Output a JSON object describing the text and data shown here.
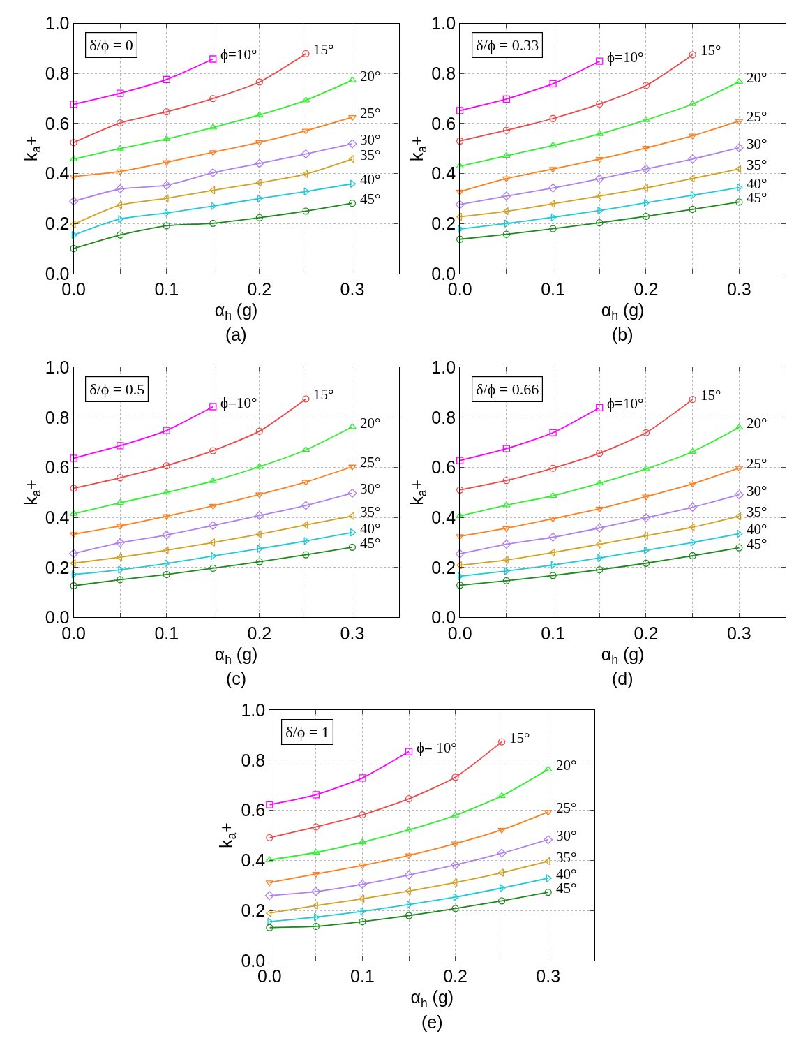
{
  "chart_data": [
    {
      "type": "line",
      "xlabel": "α$_{h}$ (g)",
      "ylabel": "k$_{a}$+",
      "annotations": [
        "δ/ϕ = 0",
        "(a)"
      ],
      "x": [
        0,
        0.05,
        0.1,
        0.15,
        0.2,
        0.25,
        0.3
      ],
      "xlim": [
        0,
        0.35
      ],
      "ylim": [
        0,
        1
      ],
      "xticks": [
        {
          "value": 0,
          "label": "0.0"
        },
        {
          "value": 0.05,
          "label": null
        },
        {
          "value": 0.1,
          "label": "0.1"
        },
        {
          "value": 0.15,
          "label": null
        },
        {
          "value": 0.2,
          "label": "0.2"
        },
        {
          "value": 0.25,
          "label": null
        },
        {
          "value": 0.3,
          "label": "0.3"
        }
      ],
      "yticks": [
        {
          "value": 0,
          "label": "0.0"
        },
        {
          "value": 0.2,
          "label": "0.2"
        },
        {
          "value": 0.4,
          "label": "0.4"
        },
        {
          "value": 0.6,
          "label": "0.6"
        },
        {
          "value": 0.8,
          "label": "0.8"
        },
        {
          "value": 1,
          "label": "1.0"
        }
      ],
      "grid": true,
      "legend": false,
      "line_style": "solid",
      "series": [
        {
          "name": "ϕ=10°",
          "color": "#ff00ff",
          "marker": "square",
          "values": [
            0.677,
            0.721,
            0.776,
            0.858,
            null,
            null,
            null
          ]
        },
        {
          "name": "15°",
          "color": "#f04848",
          "marker": "circle",
          "values": [
            0.524,
            0.602,
            0.647,
            0.7,
            0.766,
            0.879,
            null
          ]
        },
        {
          "name": "20°",
          "color": "#33ee33",
          "marker": "triangle-up",
          "values": [
            0.458,
            0.5,
            0.538,
            0.584,
            0.634,
            0.693,
            0.773
          ]
        },
        {
          "name": "25°",
          "color": "#ff7f1e",
          "marker": "triangle-down",
          "values": [
            0.388,
            0.408,
            0.445,
            0.485,
            0.525,
            0.571,
            0.625
          ]
        },
        {
          "name": "30°",
          "color": "#b07ff0",
          "marker": "diamond",
          "values": [
            0.289,
            0.338,
            0.353,
            0.403,
            0.44,
            0.478,
            0.519
          ]
        },
        {
          "name": "35°",
          "color": "#d4a020",
          "marker": "triangle-left",
          "values": [
            0.197,
            0.274,
            0.301,
            0.333,
            0.363,
            0.398,
            0.458
          ]
        },
        {
          "name": "40°",
          "color": "#20c8d8",
          "marker": "triangle-right",
          "values": [
            0.154,
            0.218,
            0.242,
            0.27,
            0.3,
            0.328,
            0.359
          ]
        },
        {
          "name": "45°",
          "color": "#1e8a1e",
          "marker": "circle",
          "values": [
            0.1,
            0.154,
            0.191,
            0.201,
            0.223,
            0.25,
            0.281
          ]
        }
      ]
    },
    {
      "type": "line",
      "xlabel": "α$_{h}$ (g)",
      "ylabel": "k$_{a}$+",
      "annotations": [
        "δ/ϕ = 0.33",
        "(b)"
      ],
      "x": [
        0,
        0.05,
        0.1,
        0.15,
        0.2,
        0.25,
        0.3
      ],
      "xlim": [
        0,
        0.35
      ],
      "ylim": [
        0,
        1
      ],
      "xticks": [
        {
          "value": 0,
          "label": "0.0"
        },
        {
          "value": 0.05,
          "label": null
        },
        {
          "value": 0.1,
          "label": "0.1"
        },
        {
          "value": 0.15,
          "label": null
        },
        {
          "value": 0.2,
          "label": "0.2"
        },
        {
          "value": 0.25,
          "label": null
        },
        {
          "value": 0.3,
          "label": "0.3"
        }
      ],
      "yticks": [
        {
          "value": 0,
          "label": "0.0"
        },
        {
          "value": 0.2,
          "label": "0.2"
        },
        {
          "value": 0.4,
          "label": "0.4"
        },
        {
          "value": 0.6,
          "label": "0.6"
        },
        {
          "value": 0.8,
          "label": "0.8"
        },
        {
          "value": 1,
          "label": "1.0"
        }
      ],
      "grid": true,
      "legend": false,
      "line_style": "solid",
      "series": [
        {
          "name": "ϕ=10°",
          "color": "#ff00ff",
          "marker": "square",
          "values": [
            0.652,
            0.698,
            0.759,
            0.849,
            null,
            null,
            null
          ]
        },
        {
          "name": "15°",
          "color": "#f04848",
          "marker": "circle",
          "values": [
            0.53,
            0.573,
            0.62,
            0.678,
            0.752,
            0.875,
            null
          ]
        },
        {
          "name": "20°",
          "color": "#33ee33",
          "marker": "triangle-up",
          "values": [
            0.429,
            0.471,
            0.512,
            0.558,
            0.614,
            0.678,
            0.767
          ]
        },
        {
          "name": "25°",
          "color": "#ff7f1e",
          "marker": "triangle-down",
          "values": [
            0.327,
            0.38,
            0.418,
            0.458,
            0.502,
            0.551,
            0.61
          ]
        },
        {
          "name": "30°",
          "color": "#b07ff0",
          "marker": "diamond",
          "values": [
            0.276,
            0.31,
            0.342,
            0.379,
            0.418,
            0.458,
            0.503
          ]
        },
        {
          "name": "35°",
          "color": "#d4a020",
          "marker": "triangle-left",
          "values": [
            0.227,
            0.249,
            0.279,
            0.31,
            0.342,
            0.38,
            0.418
          ]
        },
        {
          "name": "40°",
          "color": "#20c8d8",
          "marker": "triangle-right",
          "values": [
            0.178,
            0.2,
            0.225,
            0.252,
            0.283,
            0.313,
            0.344
          ]
        },
        {
          "name": "45°",
          "color": "#1e8a1e",
          "marker": "circle",
          "values": [
            0.137,
            0.157,
            0.179,
            0.203,
            0.229,
            0.257,
            0.286
          ]
        }
      ]
    },
    {
      "type": "line",
      "xlabel": "α$_{h}$ (g)",
      "ylabel": "k$_{a}$+",
      "annotations": [
        "δ/ϕ = 0.5",
        "(c)"
      ],
      "x": [
        0,
        0.05,
        0.1,
        0.15,
        0.2,
        0.25,
        0.3
      ],
      "xlim": [
        0,
        0.35
      ],
      "ylim": [
        0,
        1
      ],
      "xticks": [
        {
          "value": 0,
          "label": "0.0"
        },
        {
          "value": 0.05,
          "label": null
        },
        {
          "value": 0.1,
          "label": "0.1"
        },
        {
          "value": 0.15,
          "label": null
        },
        {
          "value": 0.2,
          "label": "0.2"
        },
        {
          "value": 0.25,
          "label": null
        },
        {
          "value": 0.3,
          "label": "0.3"
        }
      ],
      "yticks": [
        {
          "value": 0,
          "label": "0.0"
        },
        {
          "value": 0.2,
          "label": "0.2"
        },
        {
          "value": 0.4,
          "label": "0.4"
        },
        {
          "value": 0.6,
          "label": "0.6"
        },
        {
          "value": 0.8,
          "label": "0.8"
        },
        {
          "value": 1,
          "label": "1.0"
        }
      ],
      "grid": true,
      "legend": false,
      "line_style": "solid",
      "series": [
        {
          "name": "ϕ=10°",
          "color": "#ff00ff",
          "marker": "square",
          "values": [
            0.637,
            0.687,
            0.748,
            0.843,
            null,
            null,
            null
          ]
        },
        {
          "name": "15°",
          "color": "#f04848",
          "marker": "circle",
          "values": [
            0.517,
            0.559,
            0.607,
            0.667,
            0.745,
            0.874,
            null
          ]
        },
        {
          "name": "20°",
          "color": "#33ee33",
          "marker": "triangle-up",
          "values": [
            0.415,
            0.459,
            0.5,
            0.546,
            0.603,
            0.67,
            0.762
          ]
        },
        {
          "name": "25°",
          "color": "#ff7f1e",
          "marker": "triangle-down",
          "values": [
            0.333,
            0.366,
            0.405,
            0.446,
            0.492,
            0.542,
            0.603
          ]
        },
        {
          "name": "30°",
          "color": "#b07ff0",
          "marker": "diamond",
          "values": [
            0.256,
            0.299,
            0.33,
            0.368,
            0.408,
            0.448,
            0.497
          ]
        },
        {
          "name": "35°",
          "color": "#d4a020",
          "marker": "triangle-left",
          "values": [
            0.217,
            0.241,
            0.269,
            0.3,
            0.333,
            0.37,
            0.406
          ]
        },
        {
          "name": "40°",
          "color": "#20c8d8",
          "marker": "triangle-right",
          "values": [
            0.172,
            0.191,
            0.216,
            0.246,
            0.275,
            0.306,
            0.34
          ]
        },
        {
          "name": "45°",
          "color": "#1e8a1e",
          "marker": "circle",
          "values": [
            0.127,
            0.151,
            0.172,
            0.197,
            0.223,
            0.251,
            0.281
          ]
        }
      ]
    },
    {
      "type": "line",
      "xlabel": "α$_{h}$ (g)",
      "ylabel": "k$_{a}$+",
      "annotations": [
        "δ/ϕ = 0.66",
        "(d)"
      ],
      "x": [
        0,
        0.05,
        0.1,
        0.15,
        0.2,
        0.25,
        0.3
      ],
      "xlim": [
        0,
        0.35
      ],
      "ylim": [
        0,
        1
      ],
      "xticks": [
        {
          "value": 0,
          "label": "0.0"
        },
        {
          "value": 0.05,
          "label": null
        },
        {
          "value": 0.1,
          "label": "0.1"
        },
        {
          "value": 0.15,
          "label": null
        },
        {
          "value": 0.2,
          "label": "0.2"
        },
        {
          "value": 0.25,
          "label": null
        },
        {
          "value": 0.3,
          "label": "0.3"
        }
      ],
      "yticks": [
        {
          "value": 0,
          "label": "0.0"
        },
        {
          "value": 0.2,
          "label": "0.2"
        },
        {
          "value": 0.4,
          "label": "0.4"
        },
        {
          "value": 0.6,
          "label": "0.6"
        },
        {
          "value": 0.8,
          "label": "0.8"
        },
        {
          "value": 1,
          "label": "1.0"
        }
      ],
      "grid": true,
      "legend": false,
      "line_style": "solid",
      "series": [
        {
          "name": "ϕ=10°",
          "color": "#ff00ff",
          "marker": "square",
          "values": [
            0.628,
            0.675,
            0.739,
            0.839,
            null,
            null,
            null
          ]
        },
        {
          "name": "15°",
          "color": "#f04848",
          "marker": "circle",
          "values": [
            0.51,
            0.548,
            0.597,
            0.657,
            0.739,
            0.872,
            null
          ]
        },
        {
          "name": "20°",
          "color": "#33ee33",
          "marker": "triangle-up",
          "values": [
            0.406,
            0.449,
            0.487,
            0.537,
            0.594,
            0.663,
            0.76
          ]
        },
        {
          "name": "25°",
          "color": "#ff7f1e",
          "marker": "triangle-down",
          "values": [
            0.325,
            0.357,
            0.395,
            0.435,
            0.483,
            0.535,
            0.598
          ]
        },
        {
          "name": "30°",
          "color": "#b07ff0",
          "marker": "diamond",
          "values": [
            0.255,
            0.293,
            0.321,
            0.358,
            0.399,
            0.441,
            0.491
          ]
        },
        {
          "name": "35°",
          "color": "#d4a020",
          "marker": "triangle-left",
          "values": [
            0.209,
            0.23,
            0.26,
            0.293,
            0.327,
            0.361,
            0.405
          ]
        },
        {
          "name": "40°",
          "color": "#20c8d8",
          "marker": "triangle-right",
          "values": [
            0.165,
            0.186,
            0.21,
            0.238,
            0.269,
            0.3,
            0.335
          ]
        },
        {
          "name": "45°",
          "color": "#1e8a1e",
          "marker": "circle",
          "values": [
            0.129,
            0.147,
            0.168,
            0.191,
            0.217,
            0.247,
            0.279
          ]
        }
      ]
    },
    {
      "type": "line",
      "xlabel": "α$_{h}$ (g)",
      "ylabel": "k$_{a}$+",
      "annotations": [
        "δ/ϕ = 1",
        "(e)"
      ],
      "x": [
        0,
        0.05,
        0.1,
        0.15,
        0.2,
        0.25,
        0.3
      ],
      "xlim": [
        0,
        0.35
      ],
      "ylim": [
        0,
        1
      ],
      "xticks": [
        {
          "value": 0,
          "label": "0.0"
        },
        {
          "value": 0.05,
          "label": null
        },
        {
          "value": 0.1,
          "label": "0.1"
        },
        {
          "value": 0.15,
          "label": null
        },
        {
          "value": 0.2,
          "label": "0.2"
        },
        {
          "value": 0.25,
          "label": null
        },
        {
          "value": 0.3,
          "label": "0.3"
        }
      ],
      "yticks": [
        {
          "value": 0,
          "label": "0.0"
        },
        {
          "value": 0.2,
          "label": "0.2"
        },
        {
          "value": 0.4,
          "label": "0.4"
        },
        {
          "value": 0.6,
          "label": "0.6"
        },
        {
          "value": 0.8,
          "label": "0.8"
        },
        {
          "value": 1,
          "label": "1.0"
        }
      ],
      "grid": true,
      "legend": false,
      "line_style": "solid",
      "series": [
        {
          "name": "ϕ= 10°",
          "color": "#ff00ff",
          "marker": "square",
          "values": [
            0.622,
            0.662,
            0.729,
            0.834,
            null,
            null,
            null
          ]
        },
        {
          "name": "15°",
          "color": "#f04848",
          "marker": "circle",
          "values": [
            0.491,
            0.534,
            0.582,
            0.646,
            0.732,
            0.873,
            null
          ]
        },
        {
          "name": "20°",
          "color": "#33ee33",
          "marker": "triangle-up",
          "values": [
            0.402,
            0.432,
            0.473,
            0.522,
            0.58,
            0.657,
            0.763
          ]
        },
        {
          "name": "25°",
          "color": "#ff7f1e",
          "marker": "triangle-down",
          "values": [
            0.312,
            0.346,
            0.38,
            0.42,
            0.467,
            0.522,
            0.593
          ]
        },
        {
          "name": "30°",
          "color": "#b07ff0",
          "marker": "diamond",
          "values": [
            0.26,
            0.276,
            0.305,
            0.342,
            0.382,
            0.429,
            0.483
          ]
        },
        {
          "name": "35°",
          "color": "#d4a020",
          "marker": "triangle-left",
          "values": [
            0.19,
            0.22,
            0.247,
            0.278,
            0.312,
            0.351,
            0.397
          ]
        },
        {
          "name": "40°",
          "color": "#20c8d8",
          "marker": "triangle-right",
          "values": [
            0.156,
            0.174,
            0.197,
            0.224,
            0.254,
            0.29,
            0.329
          ]
        },
        {
          "name": "45°",
          "color": "#1e8a1e",
          "marker": "circle",
          "values": [
            0.132,
            0.137,
            0.156,
            0.18,
            0.208,
            0.239,
            0.273
          ]
        }
      ]
    }
  ]
}
